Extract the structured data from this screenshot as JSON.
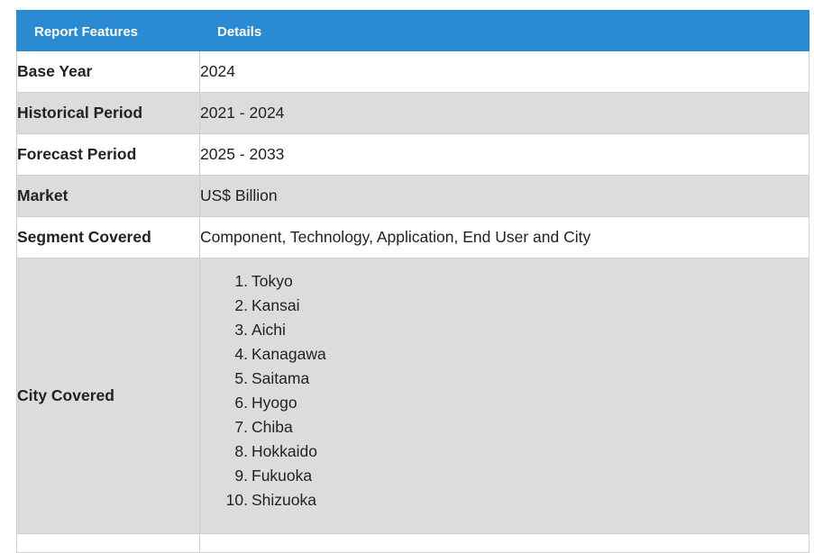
{
  "header": {
    "col1": "Report Features",
    "col2": "Details"
  },
  "rows": [
    {
      "label": "Base Year",
      "value": "2024"
    },
    {
      "label": "Historical Period",
      "value": "2021 - 2024"
    },
    {
      "label": "Forecast Period",
      "value": "2025 - 2033"
    },
    {
      "label": "Market",
      "value": "US$ Billion"
    },
    {
      "label": "Segment Covered",
      "value": "Component, Technology, Application, End User and City"
    }
  ],
  "city_row": {
    "label": "City Covered",
    "cities": [
      {
        "num": "1.",
        "name": "Tokyo"
      },
      {
        "num": "2.",
        "name": "Kansai"
      },
      {
        "num": "3.",
        "name": "Aichi"
      },
      {
        "num": "4.",
        "name": "Kanagawa"
      },
      {
        "num": "5.",
        "name": "Saitama"
      },
      {
        "num": "6.",
        "name": "Hyogo"
      },
      {
        "num": "7.",
        "name": "Chiba"
      },
      {
        "num": "8.",
        "name": "Hokkaido"
      },
      {
        "num": "9.",
        "name": "Fukuoka"
      },
      {
        "num": "10.",
        "name": "Shizuoka"
      }
    ]
  },
  "colors": {
    "header_bg": "#2a8bd3",
    "alt_row_bg": "#dcdcdc"
  }
}
